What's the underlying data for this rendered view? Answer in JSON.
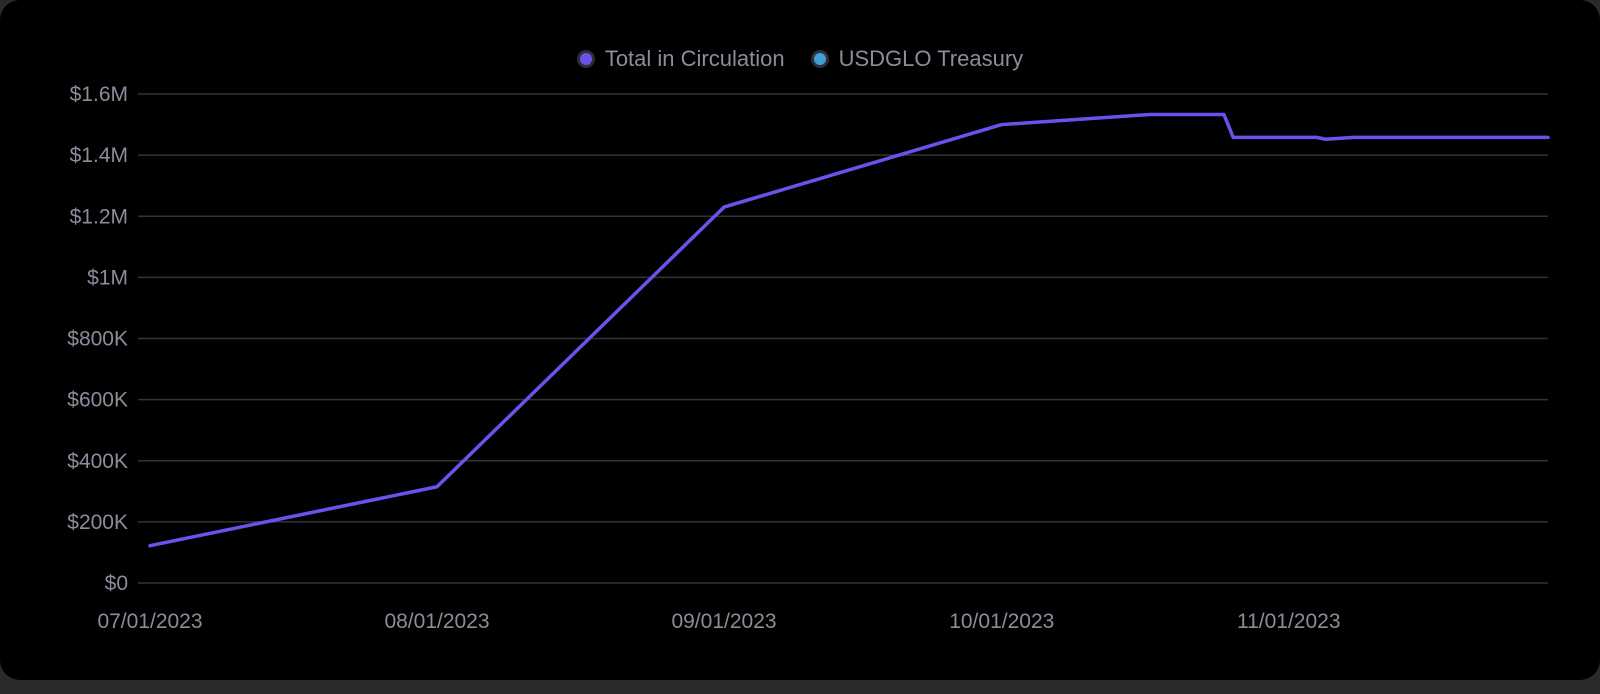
{
  "chart_data": {
    "type": "line",
    "legend": [
      {
        "name": "Total in Circulation",
        "color": "#7050ec"
      },
      {
        "name": "USDGLO Treasury",
        "color": "#3fa0d8"
      }
    ],
    "legend_placement": "top-center",
    "grid": true,
    "ylim": [
      0,
      1600000
    ],
    "y_ticks": [
      {
        "value": 0,
        "label": "$0"
      },
      {
        "value": 200000,
        "label": "$200K"
      },
      {
        "value": 400000,
        "label": "$400K"
      },
      {
        "value": 600000,
        "label": "$600K"
      },
      {
        "value": 800000,
        "label": "$800K"
      },
      {
        "value": 1000000,
        "label": "$1M"
      },
      {
        "value": 1200000,
        "label": "$1.2M"
      },
      {
        "value": 1400000,
        "label": "$1.4M"
      },
      {
        "value": 1600000,
        "label": "$1.6M"
      }
    ],
    "xlim": [
      "2023-07-01",
      "2023-11-29"
    ],
    "x_ticks": [
      {
        "date": "2023-07-01",
        "label": "07/01/2023"
      },
      {
        "date": "2023-08-01",
        "label": "08/01/2023"
      },
      {
        "date": "2023-09-01",
        "label": "09/01/2023"
      },
      {
        "date": "2023-10-01",
        "label": "10/01/2023"
      },
      {
        "date": "2023-11-01",
        "label": "11/01/2023"
      }
    ],
    "series": [
      {
        "name": "Total in Circulation",
        "color": "#7050ec",
        "points": [
          {
            "x": "2023-07-01",
            "y": 122000
          },
          {
            "x": "2023-08-01",
            "y": 315000
          },
          {
            "x": "2023-09-01",
            "y": 1230000
          },
          {
            "x": "2023-10-01",
            "y": 1500000
          },
          {
            "x": "2023-10-17",
            "y": 1533000
          },
          {
            "x": "2023-10-25",
            "y": 1533000
          },
          {
            "x": "2023-10-26",
            "y": 1458000
          },
          {
            "x": "2023-11-04",
            "y": 1458000
          },
          {
            "x": "2023-11-05",
            "y": 1452000
          },
          {
            "x": "2023-11-08",
            "y": 1458000
          },
          {
            "x": "2023-11-29",
            "y": 1458000
          }
        ]
      },
      {
        "name": "USDGLO Treasury",
        "color": "#3fa0d8",
        "points": []
      }
    ]
  }
}
